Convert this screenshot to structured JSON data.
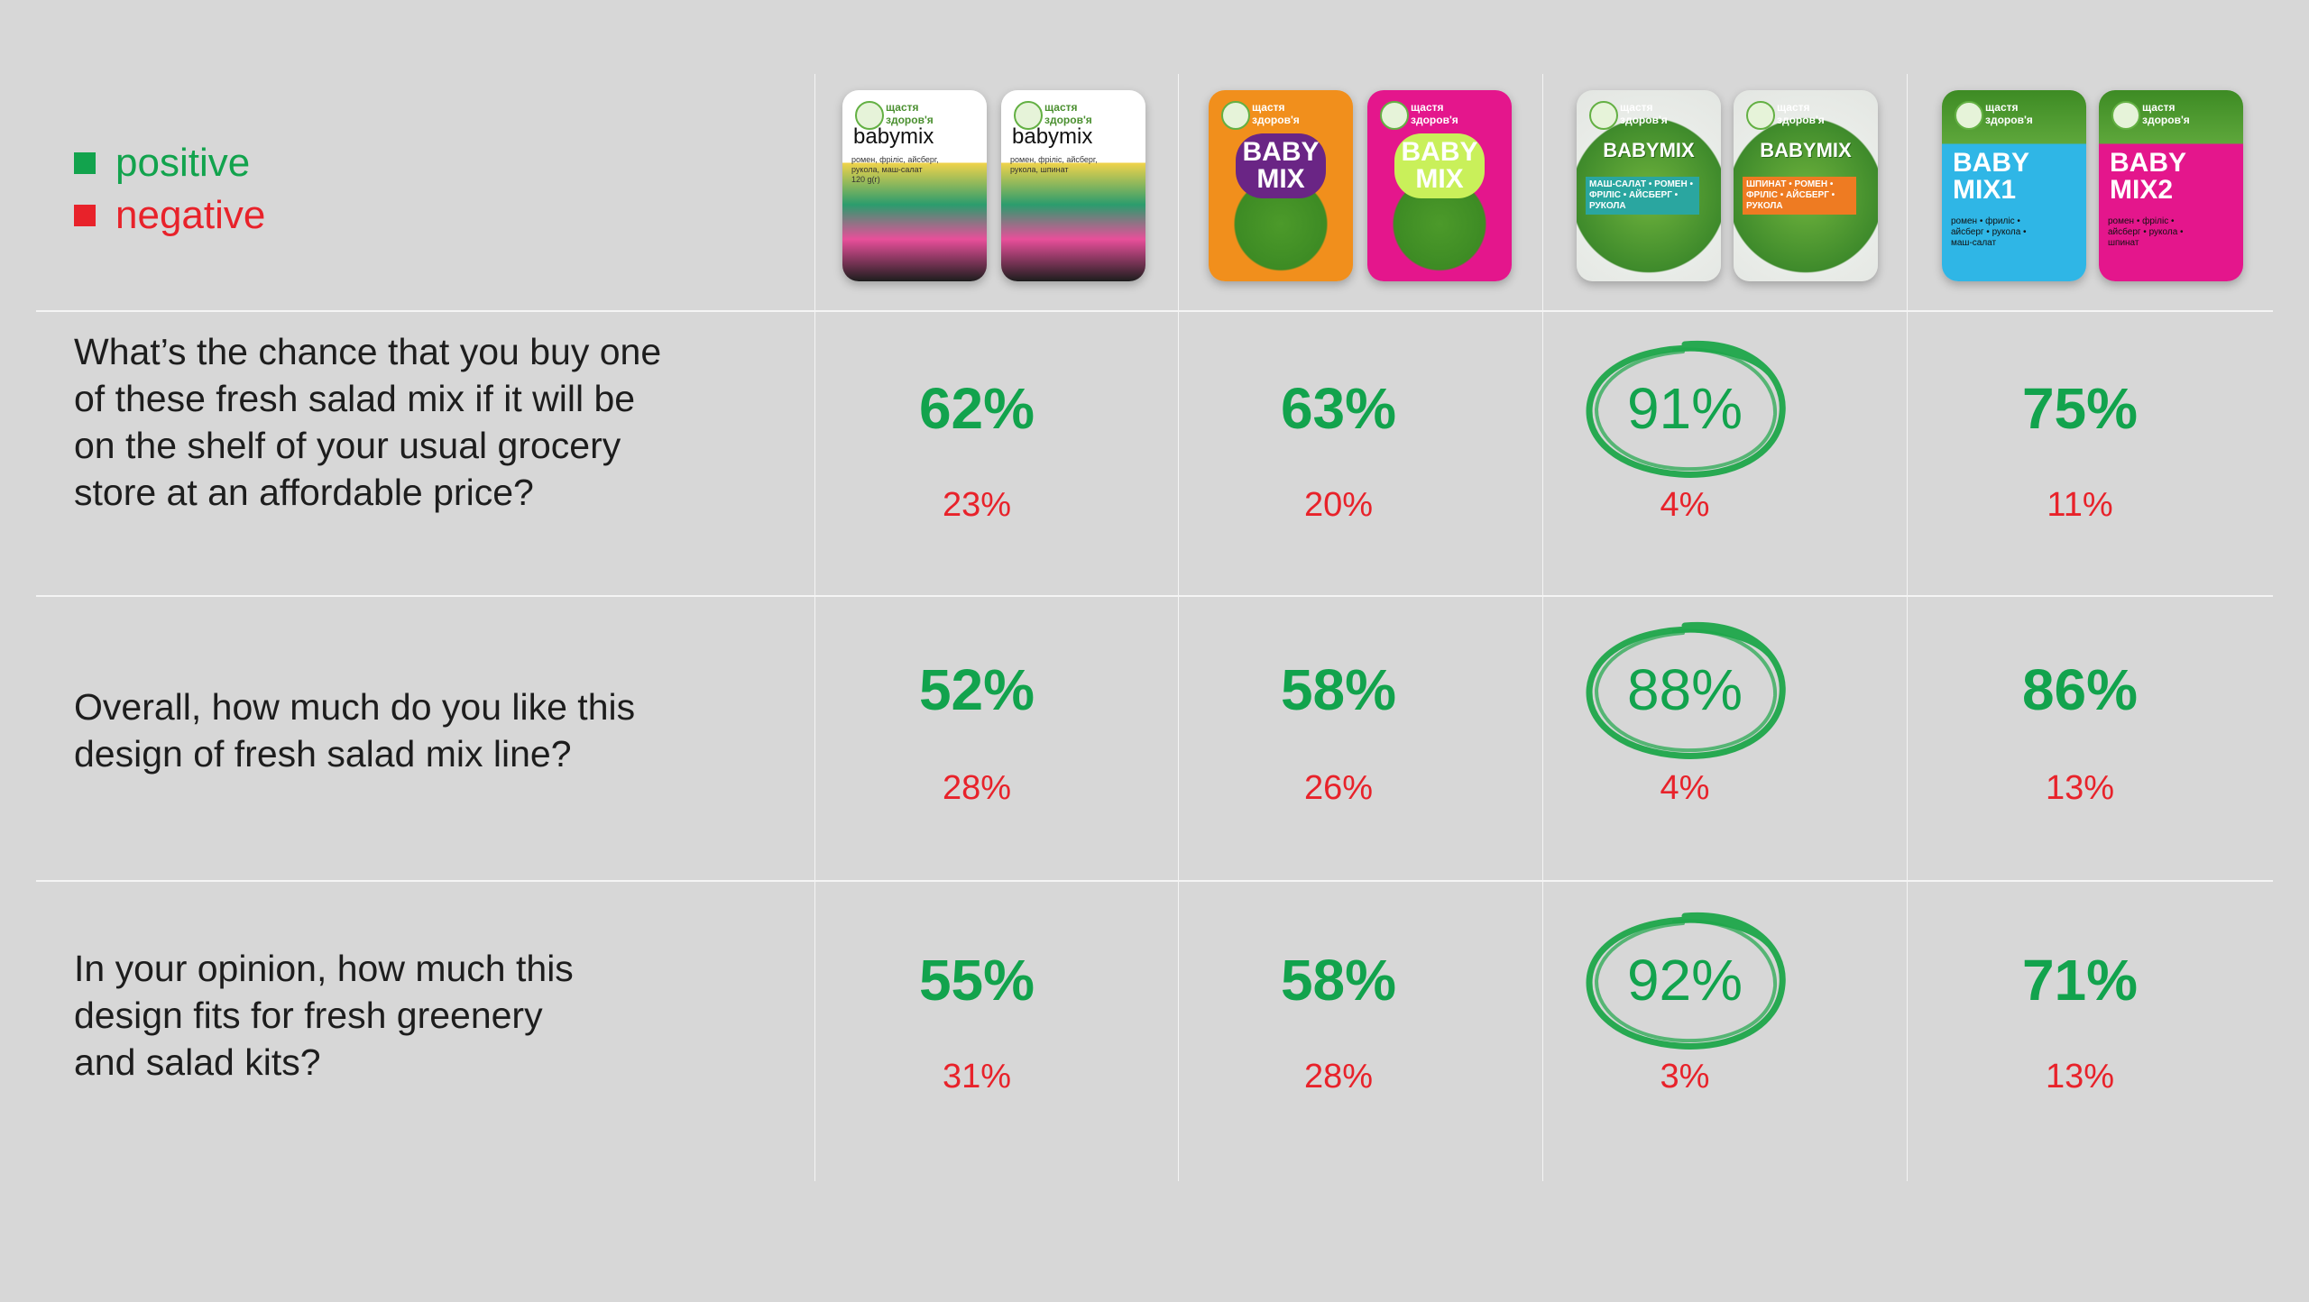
{
  "colors": {
    "positive": "#12a34d",
    "negative": "#e8222a",
    "circle": "#1ea64a",
    "background": "#d7d7d7",
    "grid": "#f4f4f4"
  },
  "legend": {
    "positive_label": "positive",
    "negative_label": "negative"
  },
  "packages": [
    {
      "variant": "illustrated-white",
      "packs": [
        {
          "brand": "щастя\nздоров'я",
          "name": "babymix",
          "sub": "ромен, фріліс, айсберг,\nрукола, маш-салат\n120 g(г)"
        },
        {
          "brand": "щастя\nздоров'я",
          "name": "babymix",
          "sub": "ромен, фріліс, айсберг,\nрукола, шпинат"
        }
      ]
    },
    {
      "variant": "bright-cloud",
      "packs": [
        {
          "brand": "щастя\nздоров'я",
          "name": "BABY\nMIX",
          "sub": ""
        },
        {
          "brand": "щастя\nздоров'я",
          "name": "BABY\nMIX",
          "sub": ""
        }
      ]
    },
    {
      "variant": "clear-label",
      "packs": [
        {
          "brand": "щастя\nздоров'я",
          "name": "BABYMIX",
          "sub": "МАШ-САЛАТ • РОМЕН •\nФРІЛІС • АЙСБЕРГ •\nРУКОЛА"
        },
        {
          "brand": "щастя\nздоров'я",
          "name": "BABYMIX",
          "sub": "ШПИНАТ • РОМЕН •\nФРІЛІС • АЙСБЕРГ •\nРУКОЛА"
        }
      ]
    },
    {
      "variant": "numbered",
      "packs": [
        {
          "brand": "щастя\nздоров'я",
          "name": "BABY\nMIX1",
          "sub": "ромен • фриліс •\nайсберг • рукола •\nмаш-салат"
        },
        {
          "brand": "щастя\nздоров'я",
          "name": "BABY\nMIX2",
          "sub": "ромен • фріліс •\nайсберг • рукола •\nшпинат"
        }
      ]
    }
  ],
  "chart_data": {
    "type": "table",
    "questions": [
      {
        "text": "What’s the chance that you buy one\nof these fresh salad mix if it will be\non the shelf of your usual grocery\nstore at an affordable price?",
        "positive": [
          "62%",
          "63%",
          "91%",
          "75%"
        ],
        "negative": [
          "23%",
          "20%",
          "4%",
          "11%"
        ],
        "highlight_column": 2
      },
      {
        "text": "Overall, how much do you like this\ndesign of fresh salad mix line?",
        "positive": [
          "52%",
          "58%",
          "88%",
          "86%"
        ],
        "negative": [
          "28%",
          "26%",
          "4%",
          "13%"
        ],
        "highlight_column": 2
      },
      {
        "text": "In your opinion, how much this\ndesign fits for fresh greenery\nand salad kits?",
        "positive": [
          "55%",
          "58%",
          "92%",
          "71%"
        ],
        "negative": [
          "31%",
          "28%",
          "3%",
          "13%"
        ],
        "highlight_column": 2
      }
    ]
  }
}
